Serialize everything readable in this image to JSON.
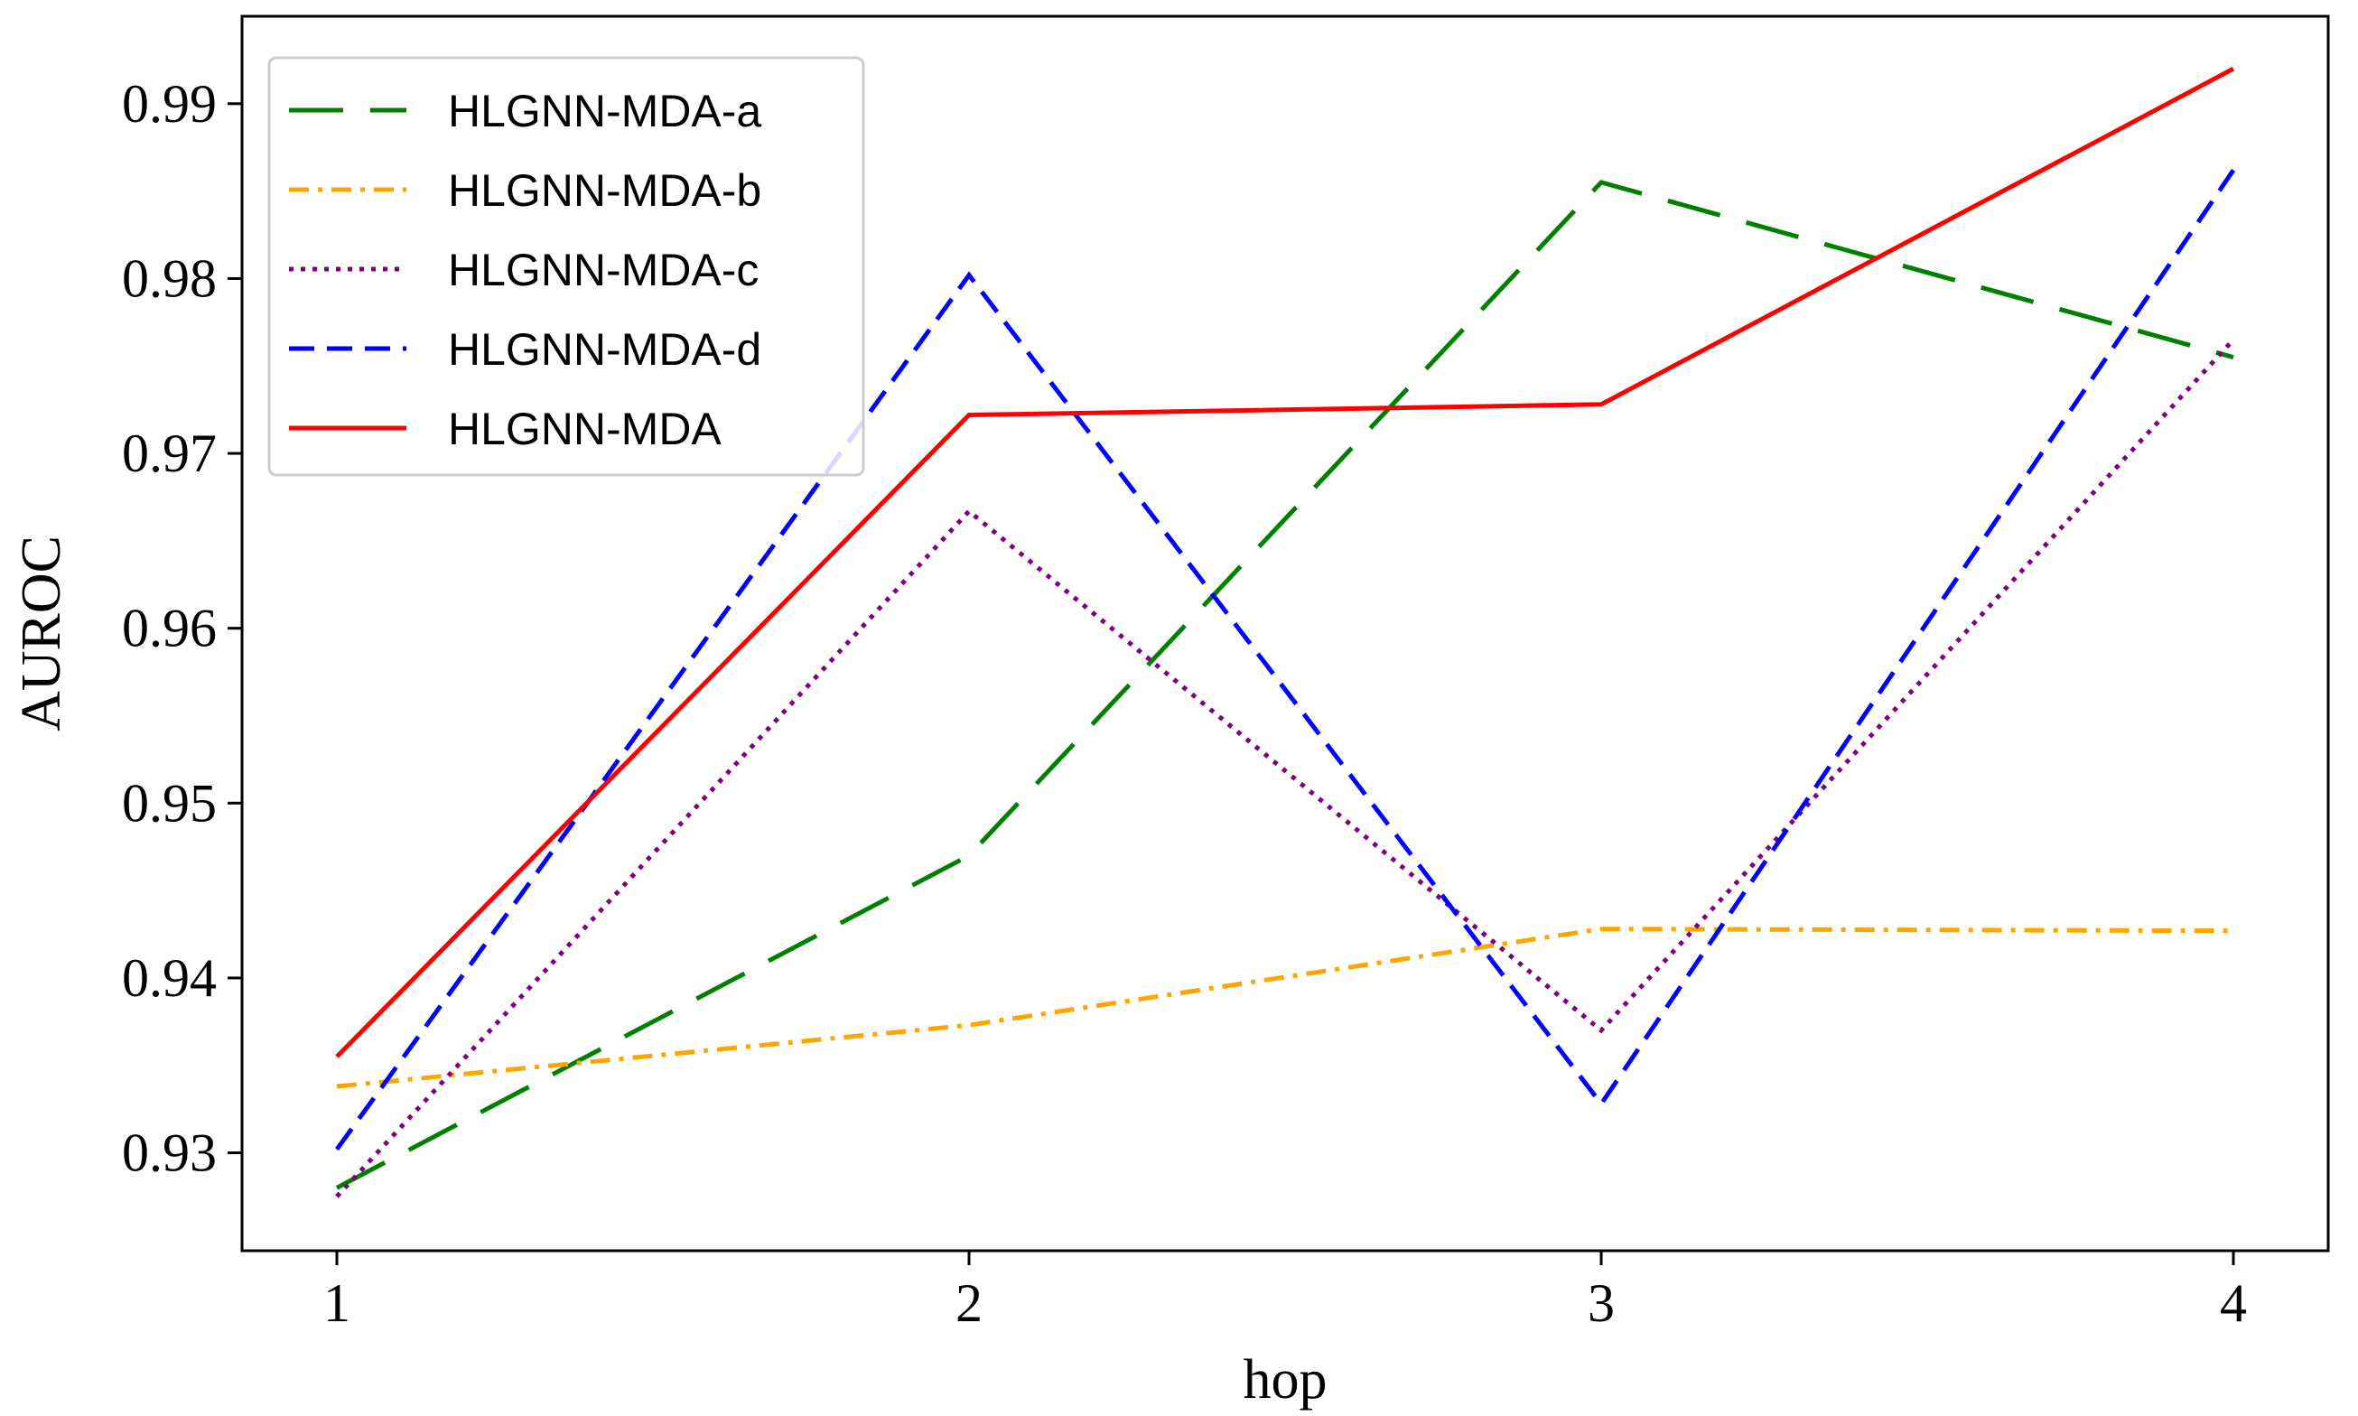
{
  "chart_data": {
    "type": "line",
    "title": "",
    "xlabel": "hop",
    "ylabel": "AUROC",
    "x": [
      1,
      2,
      3,
      4
    ],
    "xticks": [
      "1",
      "2",
      "3",
      "4"
    ],
    "xlim": [
      0.85,
      4.15
    ],
    "yticks": [
      "0.93",
      "0.94",
      "0.95",
      "0.96",
      "0.97",
      "0.98",
      "0.99"
    ],
    "ytick_values": [
      0.93,
      0.94,
      0.95,
      0.96,
      0.97,
      0.98,
      0.99
    ],
    "ylim": [
      0.9244,
      0.995
    ],
    "grid": false,
    "legend_position": "upper-left",
    "series": [
      {
        "name": "HLGNN-MDA-a",
        "color": "#008000",
        "style": "long-dash",
        "values": [
          0.928,
          0.947,
          0.9855,
          0.9755
        ]
      },
      {
        "name": "HLGNN-MDA-b",
        "color": "#FFA500",
        "style": "dash-dot",
        "values": [
          0.9338,
          0.9373,
          0.9428,
          0.9427
        ]
      },
      {
        "name": "HLGNN-MDA-c",
        "color": "#800080",
        "style": "dotted",
        "values": [
          0.9275,
          0.9667,
          0.937,
          0.9765
        ]
      },
      {
        "name": "HLGNN-MDA-d",
        "color": "#0000FF",
        "style": "dashed",
        "values": [
          0.9302,
          0.9802,
          0.9328,
          0.9862
        ]
      },
      {
        "name": "HLGNN-MDA",
        "color": "#FF0000",
        "style": "solid",
        "values": [
          0.9355,
          0.9722,
          0.9728,
          0.992
        ]
      }
    ]
  }
}
